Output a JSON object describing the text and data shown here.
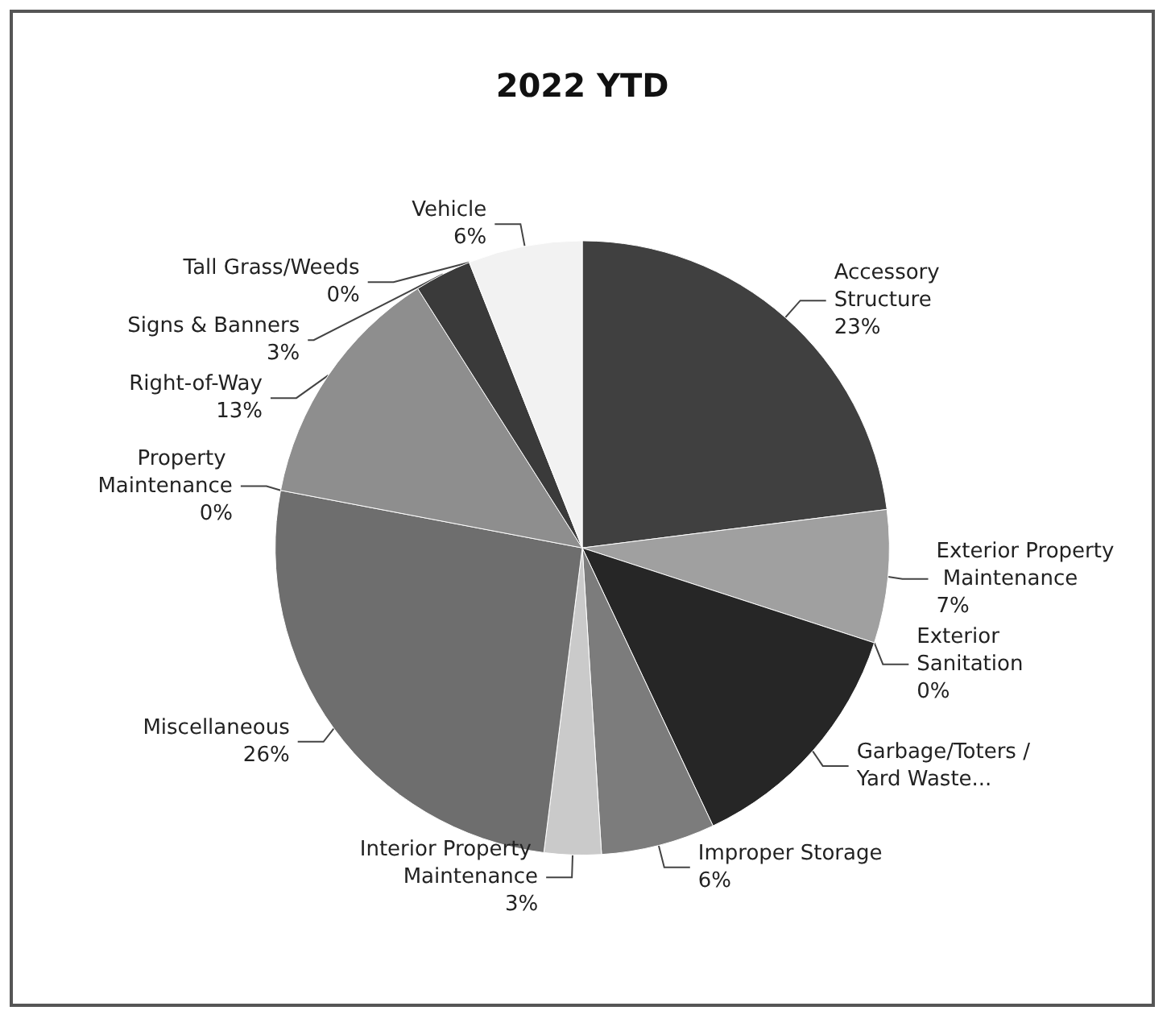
{
  "chart_data": {
    "type": "pie",
    "title": "2022 YTD",
    "categories": [
      "Accessory Structure",
      "Exterior Property Maintenance",
      "Exterior Sanitation",
      "Garbage/Toters /Yard Waste...",
      "Improper Storage",
      "Interior Property Maintenance",
      "Miscellaneous",
      "Property Maintenance",
      "Right-of-Way",
      "Signs & Banners",
      "Tall Grass/Weeds",
      "Vehicle"
    ],
    "values": [
      23,
      7,
      0,
      13,
      6,
      3,
      26,
      0,
      13,
      3,
      0,
      6
    ],
    "value_labels": [
      "23%",
      "7%",
      "0%",
      null,
      "6%",
      "3%",
      "26%",
      "0%",
      "13%",
      "3%",
      "0%",
      "6%"
    ],
    "colors": [
      "#404040",
      "#a0a0a0",
      "#303030",
      "#262626",
      "#7c7c7c",
      "#cacaca",
      "#6e6e6e",
      "#555555",
      "#8e8e8e",
      "#3a3a3a",
      "#dddddd",
      "#f2f2f2"
    ]
  }
}
